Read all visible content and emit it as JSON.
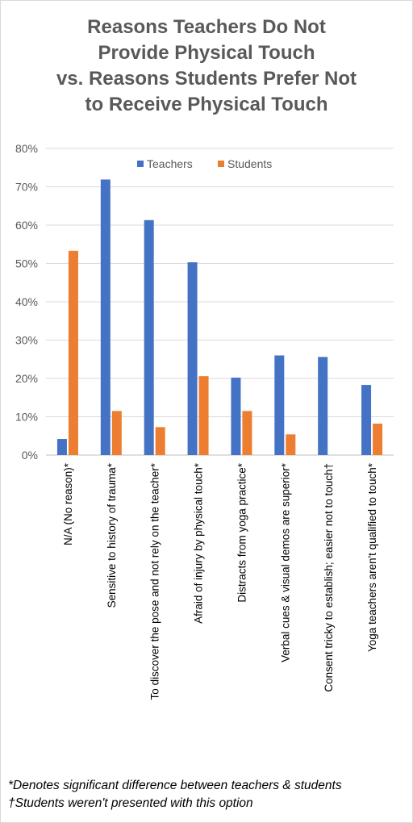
{
  "chart_data": {
    "type": "bar",
    "title_lines": [
      "Reasons Teachers Do Not",
      "Provide Physical Touch",
      "vs. Reasons Students Prefer Not",
      "to Receive Physical Touch"
    ],
    "categories": [
      "N/A (No reason)*",
      "Sensitive to history of trauma*",
      "To discover the pose and not rely on the teacher*",
      "Afraid of injury by physical touch*",
      "Distracts from yoga practice*",
      "Verbal cues & visual demos are superior*",
      "Consent tricky to establish; easier not to touch†",
      "Yoga teachers aren't qualified to touch*"
    ],
    "series": [
      {
        "name": "Teachers",
        "color": "#4472c4",
        "values": [
          4.2,
          71.9,
          61.3,
          50.3,
          20.2,
          26.0,
          25.6,
          18.3
        ]
      },
      {
        "name": "Students",
        "color": "#ed7d31",
        "values": [
          53.3,
          11.5,
          7.3,
          20.6,
          11.5,
          5.4,
          null,
          8.2
        ]
      }
    ],
    "ylim": [
      0,
      80
    ],
    "yticks": [
      "0%",
      "10%",
      "20%",
      "30%",
      "40%",
      "50%",
      "60%",
      "70%",
      "80%"
    ],
    "grid": true,
    "legend_position": "top-right"
  },
  "footnotes": [
    "*Denotes significant difference between teachers & students",
    "†Students weren't presented with this option"
  ]
}
